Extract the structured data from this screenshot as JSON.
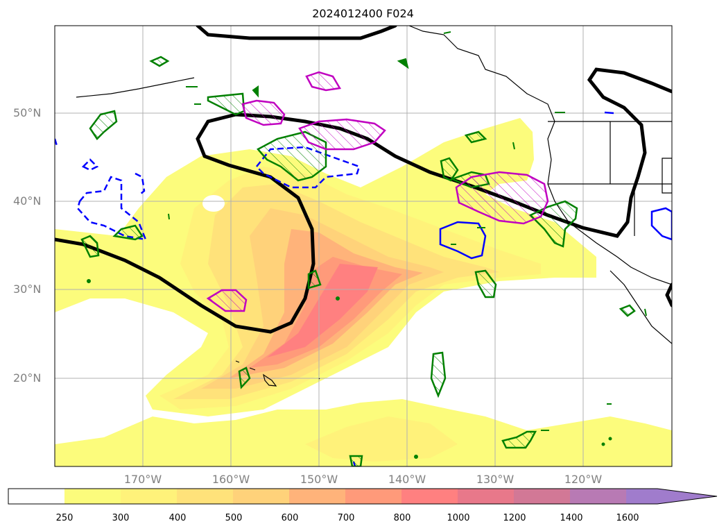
{
  "title": "2024012400 F024",
  "lat_labels": [
    "50°N",
    "40°N",
    "30°N",
    "20°N"
  ],
  "lon_labels": [
    "170°W",
    "160°W",
    "150°W",
    "140°W",
    "130°W",
    "120°W"
  ],
  "colorbar": {
    "ticks": [
      "250",
      "300",
      "400",
      "500",
      "600",
      "700",
      "800",
      "1000",
      "1200",
      "1400",
      "1600"
    ],
    "colors": [
      "#ffffff",
      "#fcfc7c",
      "#fff27a",
      "#ffe27a",
      "#ffd27a",
      "#ffb37a",
      "#ff9a7a",
      "#ff8080",
      "#e8788a",
      "#d27896",
      "#b87ab4",
      "#a07ccc"
    ]
  },
  "contour_colors": {
    "black": "#000000",
    "blue": "#0000ff",
    "green": "#008000",
    "magenta": "#c000c0"
  }
}
